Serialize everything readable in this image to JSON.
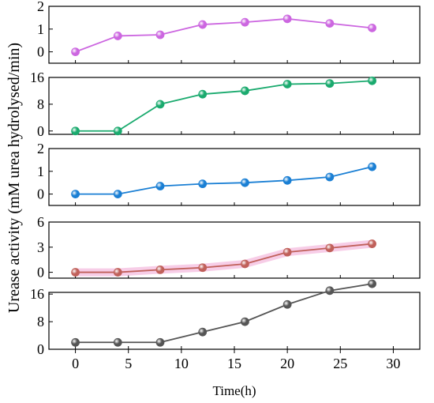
{
  "chart_data": {
    "type": "line",
    "ylabel": "Urease activity (mM urea hydrolysed/min)",
    "xlabel": "Time(h)",
    "x_ticks": [
      0,
      5,
      10,
      15,
      20,
      25,
      30
    ],
    "xlim": [
      -2.5,
      32.5
    ],
    "x": [
      0,
      4,
      8,
      12,
      16,
      20,
      24,
      28
    ],
    "panels": [
      {
        "color": "#cc66e0",
        "ylim": [
          -0.5,
          2
        ],
        "yticks": [
          0,
          1,
          2
        ],
        "values": [
          0.0,
          0.7,
          0.75,
          1.2,
          1.3,
          1.45,
          1.25,
          1.05
        ]
      },
      {
        "color": "#1aaa6e",
        "ylim": [
          -1,
          16
        ],
        "yticks": [
          0,
          8,
          16
        ],
        "values": [
          0,
          0,
          8,
          11,
          12,
          14,
          14.2,
          15
        ]
      },
      {
        "color": "#1a7fd4",
        "ylim": [
          -0.5,
          2
        ],
        "yticks": [
          0,
          1,
          2
        ],
        "values": [
          0,
          0,
          0.35,
          0.45,
          0.5,
          0.6,
          0.75,
          1.2
        ]
      },
      {
        "color": "#c0605a",
        "band_color": "#f4b8dd",
        "ylim": [
          -0.7,
          6
        ],
        "yticks": [
          0,
          3,
          6
        ],
        "values": [
          0,
          0,
          0.3,
          0.55,
          1.0,
          2.4,
          2.9,
          3.4
        ]
      },
      {
        "color": "#555555",
        "ylim": [
          0,
          16.5
        ],
        "yticks": [
          0,
          8,
          16
        ],
        "values": [
          2,
          2,
          2,
          5,
          8,
          13,
          17,
          19
        ]
      }
    ]
  }
}
